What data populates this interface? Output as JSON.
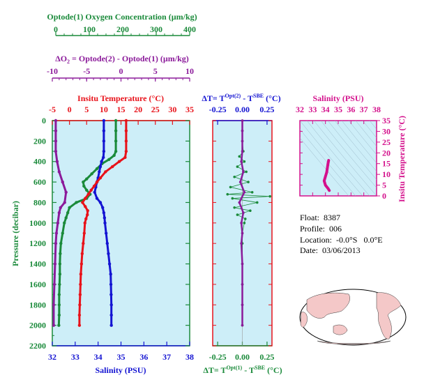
{
  "colors": {
    "oxygen": "#1a8a3a",
    "delta_o2": "#8b1a9a",
    "temperature": "#e8121a",
    "salinity": "#1414d2",
    "pressure": "#1a8a3a",
    "ts_panel": "#d4118c",
    "panel_bg": "#cdeef8"
  },
  "top_axes": {
    "oxygen": {
      "label": "Optode(1) Oxygen Concentration (µm/kg)",
      "ticks": [
        "0",
        "100",
        "200",
        "300",
        "400"
      ]
    },
    "delta_o2": {
      "label_prefix": "ΔO",
      "label_sub": "2",
      "label_rest": " = Optode(2) - Optode(1)     (µm/kg)",
      "ticks": [
        "-10",
        "-5",
        "0",
        "5",
        "10"
      ]
    }
  },
  "info": {
    "float": "Float:  8387",
    "profile": "Profile:  006",
    "location": "Location:  -0.0°S   0.0°E",
    "date": "Date:  03/06/2013"
  },
  "chart_data": [
    {
      "type": "line",
      "panel": "main_profile",
      "title": "Insitu Temperature (°C)",
      "xlabel_top": "Insitu Temperature (°C)",
      "xlabel_bottom": "Salinity (PSU)",
      "ylabel": "Pressure (decibar)",
      "temperature_ticks": [
        "-5",
        "0",
        "5",
        "10",
        "15",
        "20",
        "25",
        "30",
        "35"
      ],
      "temperature_range": [
        -5,
        35
      ],
      "salinity_ticks": [
        "32",
        "33",
        "34",
        "35",
        "36",
        "37",
        "38"
      ],
      "salinity_range": [
        32,
        38
      ],
      "pressure_ticks": [
        "0",
        "200",
        "400",
        "600",
        "800",
        "1000",
        "1200",
        "1400",
        "1600",
        "1800",
        "2000",
        "2200"
      ],
      "pressure_range": [
        0,
        2200
      ],
      "series": [
        {
          "name": "Temperature",
          "axis": "temperature",
          "points": [
            [
              16.5,
              0
            ],
            [
              16.5,
              100
            ],
            [
              16.5,
              200
            ],
            [
              16.5,
              300
            ],
            [
              16.2,
              360
            ],
            [
              14.5,
              400
            ],
            [
              12.5,
              450
            ],
            [
              10.5,
              500
            ],
            [
              9.0,
              560
            ],
            [
              8.0,
              600
            ],
            [
              7.2,
              640
            ],
            [
              6.3,
              680
            ],
            [
              5.5,
              720
            ],
            [
              4.6,
              760
            ],
            [
              3.8,
              800
            ],
            [
              4.6,
              840
            ],
            [
              5.3,
              880
            ],
            [
              5.2,
              920
            ],
            [
              4.8,
              960
            ],
            [
              4.5,
              1000
            ],
            [
              4.3,
              1100
            ],
            [
              4.0,
              1200
            ],
            [
              3.7,
              1300
            ],
            [
              3.5,
              1400
            ],
            [
              3.3,
              1500
            ],
            [
              3.2,
              1600
            ],
            [
              3.1,
              1700
            ],
            [
              3.0,
              1800
            ],
            [
              2.9,
              1900
            ],
            [
              2.9,
              2000
            ]
          ]
        },
        {
          "name": "Salinity",
          "axis": "salinity",
          "points": [
            [
              34.25,
              0
            ],
            [
              34.25,
              100
            ],
            [
              34.25,
              200
            ],
            [
              34.25,
              300
            ],
            [
              34.23,
              360
            ],
            [
              34.15,
              400
            ],
            [
              34.1,
              450
            ],
            [
              34.05,
              500
            ],
            [
              34.0,
              560
            ],
            [
              33.95,
              600
            ],
            [
              33.9,
              650
            ],
            [
              33.85,
              700
            ],
            [
              33.95,
              760
            ],
            [
              34.1,
              800
            ],
            [
              34.2,
              850
            ],
            [
              34.25,
              900
            ],
            [
              34.28,
              950
            ],
            [
              34.3,
              1000
            ],
            [
              34.35,
              1100
            ],
            [
              34.4,
              1200
            ],
            [
              34.45,
              1300
            ],
            [
              34.5,
              1400
            ],
            [
              34.55,
              1500
            ],
            [
              34.56,
              1600
            ],
            [
              34.57,
              1700
            ],
            [
              34.58,
              1800
            ],
            [
              34.58,
              1900
            ],
            [
              34.58,
              2000
            ]
          ]
        },
        {
          "name": "Oxygen",
          "axis": "oxygen",
          "points": [
            [
              185,
              0
            ],
            [
              185,
              100
            ],
            [
              185,
              200
            ],
            [
              185,
              300
            ],
            [
              180,
              340
            ],
            [
              165,
              380
            ],
            [
              145,
              420
            ],
            [
              130,
              470
            ],
            [
              115,
              520
            ],
            [
              100,
              570
            ],
            [
              90,
              600
            ],
            [
              92,
              640
            ],
            [
              100,
              680
            ],
            [
              110,
              720
            ],
            [
              100,
              760
            ],
            [
              70,
              800
            ],
            [
              50,
              850
            ],
            [
              45,
              900
            ],
            [
              40,
              950
            ],
            [
              35,
              1000
            ],
            [
              30,
              1100
            ],
            [
              25,
              1200
            ],
            [
              23,
              1300
            ],
            [
              22,
              1400
            ],
            [
              22,
              1500
            ],
            [
              21,
              1600
            ],
            [
              20,
              1700
            ],
            [
              20,
              1800
            ],
            [
              20,
              1900
            ],
            [
              19,
              2000
            ]
          ]
        },
        {
          "name": "Delta O2",
          "axis": "delta_o2",
          "points": [
            [
              -9.5,
              0
            ],
            [
              -9.5,
              100
            ],
            [
              -9.5,
              200
            ],
            [
              -9.5,
              300
            ],
            [
              -9.3,
              400
            ],
            [
              -9.0,
              500
            ],
            [
              -8.5,
              600
            ],
            [
              -8.0,
              700
            ],
            [
              -8.2,
              800
            ],
            [
              -8.8,
              850
            ],
            [
              -9.0,
              900
            ],
            [
              -9.2,
              1000
            ],
            [
              -9.4,
              1100
            ],
            [
              -9.5,
              1200
            ],
            [
              -9.6,
              1400
            ],
            [
              -9.7,
              1600
            ],
            [
              -9.8,
              1800
            ],
            [
              -9.8,
              2000
            ]
          ]
        }
      ]
    },
    {
      "type": "scatter",
      "panel": "delta_t",
      "xlabel_top_prefix": "ΔT= T",
      "xlabel_top_sup": "Opt(2)",
      "xlabel_top_mid": " - T",
      "xlabel_top_sup2": "SBE",
      "xlabel_top_unit": " (°C)",
      "xlabel_bottom_prefix": "ΔT= T",
      "xlabel_bottom_sup": "Opt(1)",
      "xlabel_bottom_mid": " - T",
      "xlabel_bottom_sup2": "SBE",
      "xlabel_bottom_unit": " (°C)",
      "ticks": [
        "-0.25",
        "0.00",
        "0.25"
      ],
      "range": [
        -0.3,
        0.3
      ],
      "series": [
        {
          "name": "Opt(2) - SBE",
          "points": [
            [
              0.0,
              0
            ],
            [
              0.0,
              100
            ],
            [
              0.0,
              200
            ],
            [
              0.01,
              300
            ],
            [
              -0.03,
              350
            ],
            [
              0.02,
              400
            ],
            [
              -0.05,
              450
            ],
            [
              0.04,
              500
            ],
            [
              -0.08,
              550
            ],
            [
              0.06,
              600
            ],
            [
              -0.12,
              650
            ],
            [
              0.1,
              700
            ],
            [
              -0.15,
              720
            ],
            [
              0.28,
              740
            ],
            [
              -0.1,
              760
            ],
            [
              0.15,
              800
            ],
            [
              -0.08,
              850
            ],
            [
              0.08,
              880
            ],
            [
              -0.05,
              920
            ],
            [
              0.03,
              960
            ],
            [
              0.02,
              1000
            ],
            [
              0.0,
              1100
            ],
            [
              0.0,
              1200
            ],
            [
              0.0,
              1400
            ],
            [
              0.0,
              1600
            ],
            [
              0.0,
              1800
            ],
            [
              0.0,
              2000
            ]
          ]
        },
        {
          "name": "Opt(1) - SBE",
          "points": [
            [
              0.0,
              0
            ],
            [
              0.0,
              100
            ],
            [
              0.0,
              200
            ],
            [
              0.0,
              300
            ],
            [
              -0.01,
              400
            ],
            [
              0.01,
              500
            ],
            [
              -0.02,
              600
            ],
            [
              0.02,
              700
            ],
            [
              -0.03,
              800
            ],
            [
              0.01,
              900
            ],
            [
              -0.01,
              1000
            ],
            [
              0.0,
              1100
            ],
            [
              -0.01,
              1200
            ],
            [
              0.0,
              1400
            ],
            [
              0.0,
              1600
            ],
            [
              0.0,
              1800
            ],
            [
              0.0,
              2000
            ]
          ]
        }
      ]
    },
    {
      "type": "line",
      "panel": "ts_diagram",
      "title": "Salinity (PSU)",
      "xlabel": "Salinity (PSU)",
      "ylabel": "Insitu Temperature (°C)",
      "salinity_ticks": [
        "32",
        "33",
        "34",
        "35",
        "36",
        "37",
        "38"
      ],
      "salinity_range": [
        32,
        38
      ],
      "temperature_ticks": [
        "0",
        "5",
        "10",
        "15",
        "20",
        "25",
        "30",
        "35"
      ],
      "temperature_range": [
        0,
        35
      ],
      "series": [
        {
          "name": "T-S",
          "points": [
            [
              34.3,
              2.5
            ],
            [
              34.2,
              3.5
            ],
            [
              34.0,
              5
            ],
            [
              33.9,
              7
            ],
            [
              34.0,
              9
            ],
            [
              34.1,
              11
            ],
            [
              34.15,
              13
            ],
            [
              34.2,
              15
            ],
            [
              34.25,
              16.5
            ]
          ]
        }
      ]
    }
  ]
}
